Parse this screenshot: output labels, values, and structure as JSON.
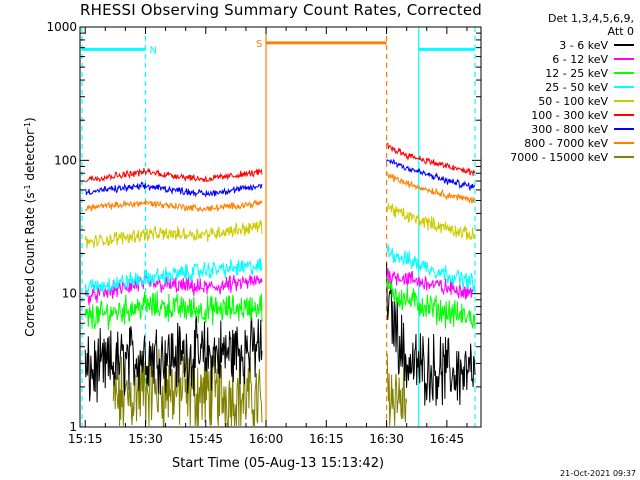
{
  "chart_data": {
    "type": "line",
    "title": "RHESSI Observing Summary Count Rates, Corrected",
    "xlabel": "Start Time (05-Aug-13 15:13:42)",
    "ylabel_main": "Corrected Count Rate (s",
    "ylabel_sup1": "-1",
    "ylabel_mid": " detector",
    "ylabel_sup2": "-1",
    "ylabel_end": ")",
    "yscale": "log",
    "ylim": [
      1,
      1000
    ],
    "xlim_minutes": [
      13.7,
      113.5
    ],
    "x_ticks": [
      {
        "label": "15:15",
        "minute": 15
      },
      {
        "label": "15:30",
        "minute": 30
      },
      {
        "label": "15:45",
        "minute": 45
      },
      {
        "label": "16:00",
        "minute": 60
      },
      {
        "label": "16:15",
        "minute": 75
      },
      {
        "label": "16:30",
        "minute": 90
      },
      {
        "label": "16:45",
        "minute": 105
      }
    ],
    "y_ticks": [
      {
        "label": "1",
        "value": 1
      },
      {
        "label": "10",
        "value": 10
      },
      {
        "label": "100",
        "value": 100
      },
      {
        "label": "1000",
        "value": 1000
      }
    ],
    "legend_header": [
      "Det 1,3,4,5,6,9,",
      "Att 0"
    ],
    "series": [
      {
        "name": "3 - 6 keV",
        "color": "#000000",
        "pre": [
          [
            15,
            2.5
          ],
          [
            30,
            3.5
          ],
          [
            45,
            3.4
          ],
          [
            59,
            4.0
          ]
        ],
        "post": [
          [
            90,
            9.5
          ],
          [
            95,
            3.0
          ],
          [
            105,
            2.6
          ],
          [
            112,
            2.5
          ]
        ],
        "noise": 0.2
      },
      {
        "name": "6 - 12 keV",
        "color": "#ff00ff",
        "pre": [
          [
            15,
            9.5
          ],
          [
            30,
            12
          ],
          [
            45,
            11
          ],
          [
            59,
            12.5
          ]
        ],
        "post": [
          [
            90,
            14
          ],
          [
            95,
            13
          ],
          [
            105,
            11
          ],
          [
            112,
            10.5
          ]
        ],
        "noise": 0.05
      },
      {
        "name": "12 - 25 keV",
        "color": "#00ff00",
        "pre": [
          [
            15,
            6.5
          ],
          [
            30,
            8.2
          ],
          [
            45,
            7.5
          ],
          [
            59,
            8.0
          ]
        ],
        "post": [
          [
            90,
            11
          ],
          [
            95,
            9
          ],
          [
            105,
            7.2
          ],
          [
            112,
            6.5
          ]
        ],
        "noise": 0.08
      },
      {
        "name": "25 - 50 keV",
        "color": "#00ffff",
        "pre": [
          [
            15,
            11
          ],
          [
            30,
            13
          ],
          [
            45,
            15
          ],
          [
            59,
            16
          ]
        ],
        "post": [
          [
            90,
            21
          ],
          [
            95,
            18
          ],
          [
            105,
            14
          ],
          [
            112,
            12
          ]
        ],
        "noise": 0.05
      },
      {
        "name": "50 - 100 keV",
        "color": "#cccc00",
        "pre": [
          [
            15,
            24
          ],
          [
            30,
            28
          ],
          [
            45,
            28
          ],
          [
            59,
            32
          ]
        ],
        "post": [
          [
            90,
            45
          ],
          [
            95,
            38
          ],
          [
            105,
            31
          ],
          [
            112,
            27
          ]
        ],
        "noise": 0.04
      },
      {
        "name": "100 - 300 keV",
        "color": "#ff0000",
        "pre": [
          [
            15,
            72
          ],
          [
            30,
            82
          ],
          [
            45,
            72
          ],
          [
            59,
            82
          ]
        ],
        "post": [
          [
            90,
            128
          ],
          [
            95,
            110
          ],
          [
            105,
            90
          ],
          [
            112,
            80
          ]
        ],
        "noise": 0.02
      },
      {
        "name": "300 - 800 keV",
        "color": "#0000ff",
        "pre": [
          [
            15,
            58
          ],
          [
            30,
            64
          ],
          [
            45,
            56
          ],
          [
            59,
            64
          ]
        ],
        "post": [
          [
            90,
            102
          ],
          [
            95,
            88
          ],
          [
            105,
            70
          ],
          [
            112,
            63
          ]
        ],
        "noise": 0.02
      },
      {
        "name": "800 - 7000 keV",
        "color": "#ff8000",
        "pre": [
          [
            15,
            44
          ],
          [
            30,
            48
          ],
          [
            45,
            43
          ],
          [
            59,
            48
          ]
        ],
        "post": [
          [
            90,
            78
          ],
          [
            95,
            67
          ],
          [
            105,
            55
          ],
          [
            112,
            50
          ]
        ],
        "noise": 0.02
      },
      {
        "name": "7000 - 15000 keV",
        "color": "#808000",
        "pre": [
          [
            22,
            1.5
          ],
          [
            30,
            2.0
          ],
          [
            45,
            1.8
          ],
          [
            59,
            1.6
          ]
        ],
        "post": [
          [
            90,
            2.0
          ],
          [
            95,
            1.5
          ]
        ],
        "noise": 0.25
      }
    ],
    "markers": [
      {
        "label": "N",
        "color": "#00ffff",
        "bar": [
          14,
          30
        ],
        "bar_value": 680,
        "lines": [
          14.2,
          30
        ],
        "style": "dashed"
      },
      {
        "label": "S",
        "color": "#ff8000",
        "bar": [
          60,
          90
        ],
        "bar_value": 760,
        "lines": [
          60,
          90
        ],
        "style": "mixed"
      },
      {
        "label": "",
        "color": "#00ffff",
        "bar": [
          98,
          112
        ],
        "bar_value": 680,
        "lines": [
          98,
          112
        ],
        "style": "mixed"
      }
    ]
  },
  "footer": {
    "timestamp": "21-Oct-2021 09:37"
  }
}
